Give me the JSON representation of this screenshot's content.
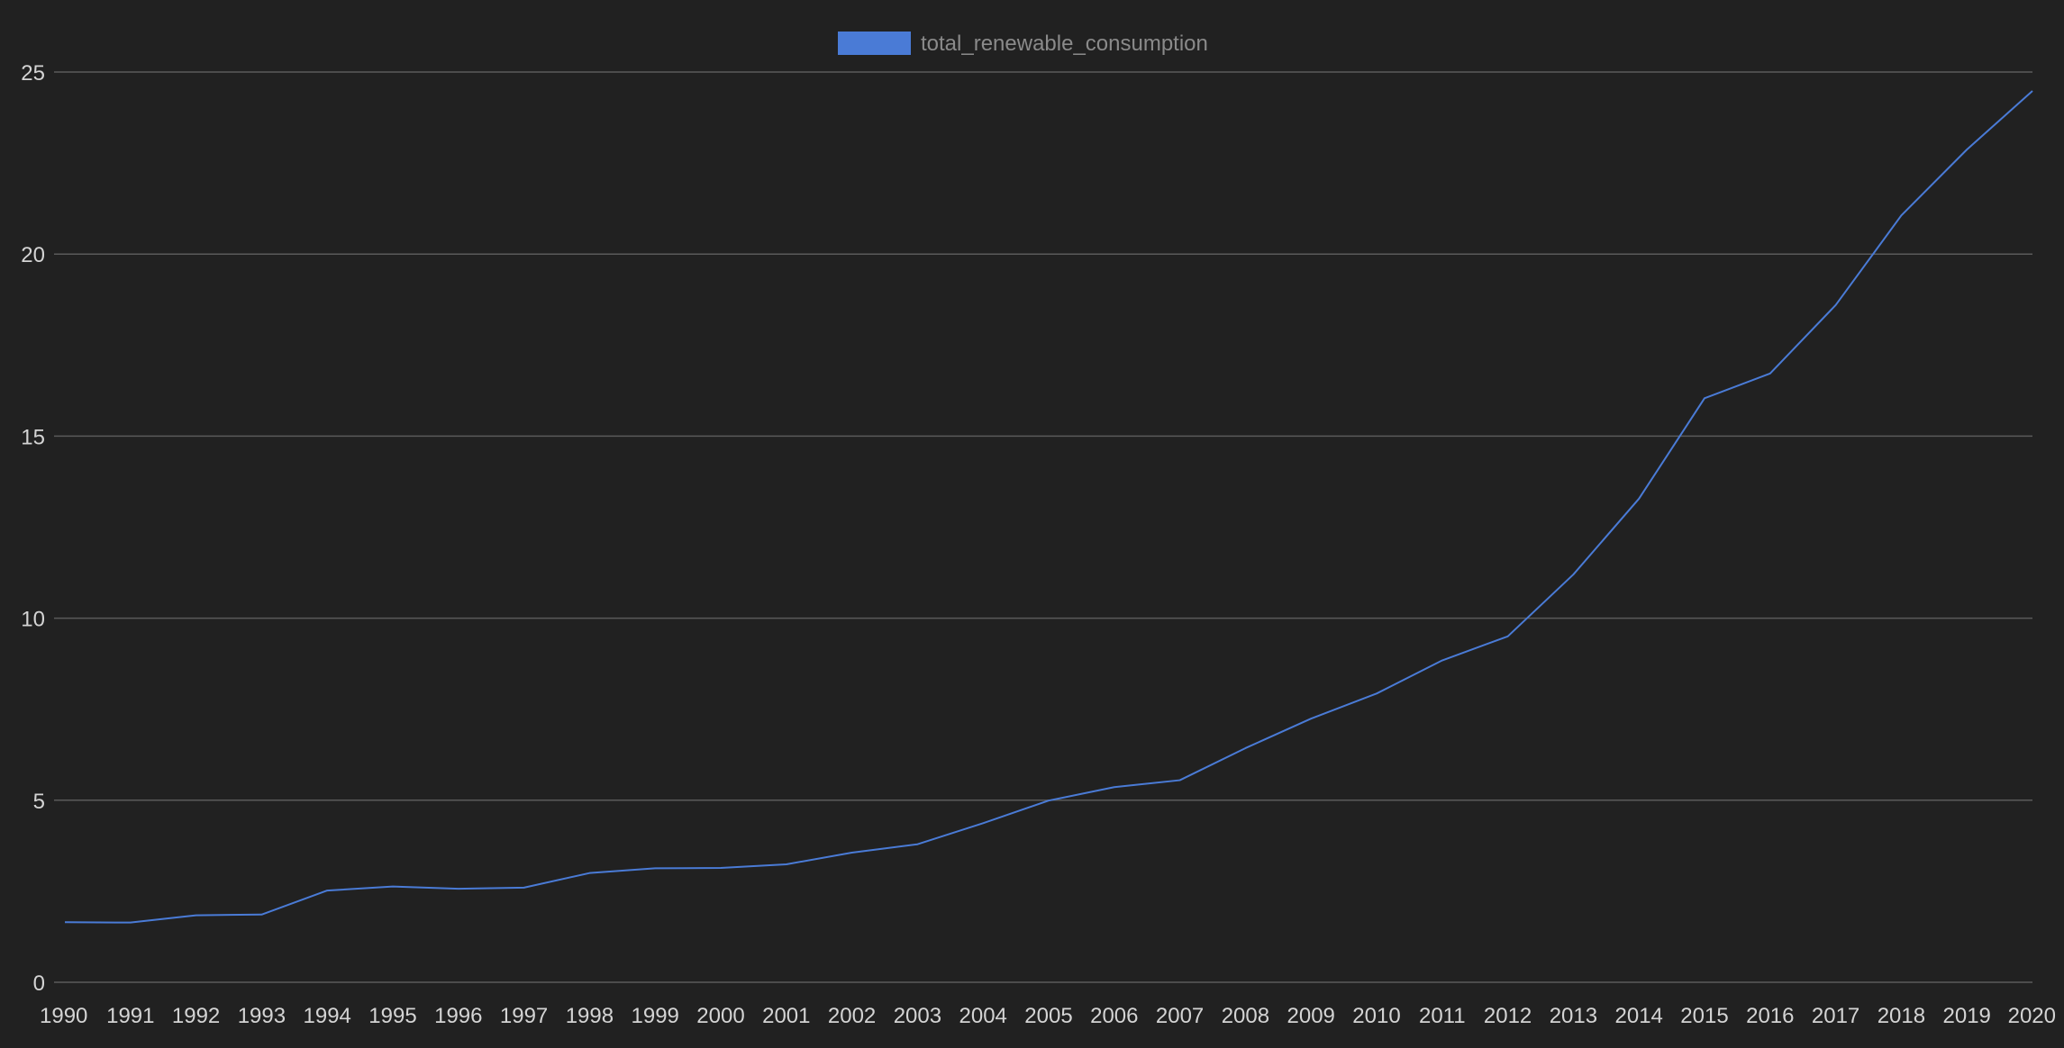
{
  "chart_data": {
    "type": "line",
    "title": "",
    "xlabel": "",
    "ylabel": "",
    "categories": [
      "1990",
      "1991",
      "1992",
      "1993",
      "1994",
      "1995",
      "1996",
      "1997",
      "1998",
      "1999",
      "2000",
      "2001",
      "2002",
      "2003",
      "2004",
      "2005",
      "2006",
      "2007",
      "2008",
      "2009",
      "2010",
      "2011",
      "2012",
      "2013",
      "2014",
      "2015",
      "2016",
      "2017",
      "2018",
      "2019",
      "2020"
    ],
    "series": [
      {
        "name": "total_renewable_consumption",
        "values": [
          1.65,
          1.64,
          1.84,
          1.86,
          2.52,
          2.63,
          2.57,
          2.6,
          3.0,
          3.13,
          3.14,
          3.24,
          3.56,
          3.79,
          4.37,
          4.99,
          5.36,
          5.55,
          6.43,
          7.24,
          7.93,
          8.84,
          9.5,
          11.2,
          13.28,
          16.04,
          16.72,
          18.6,
          21.06,
          22.87,
          24.48
        ]
      }
    ],
    "ylim": [
      0,
      25
    ],
    "yticks": [
      "0",
      "5",
      "10",
      "15",
      "20",
      "25"
    ],
    "grid": true,
    "legend_position": "top-center",
    "colors": {
      "background": "#212121",
      "series": "#4a7bd6",
      "grid": "#5a5a5a",
      "tick_text": "#d4d4d4",
      "legend_text": "#8a8a8a"
    }
  }
}
